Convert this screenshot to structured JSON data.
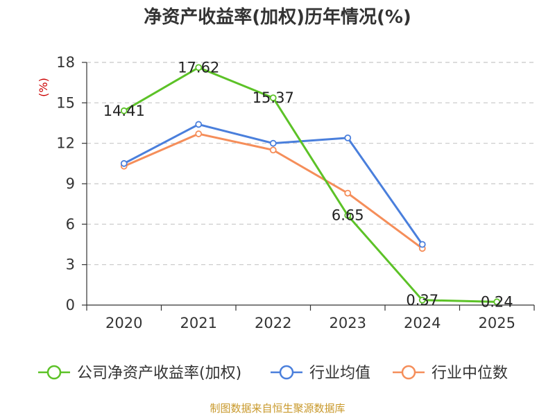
{
  "chart_data": {
    "type": "line",
    "title": "净资产收益率(加权)历年情况(%)",
    "ylabel": "(%)",
    "xlabel": "",
    "categories": [
      "2020",
      "2021",
      "2022",
      "2023",
      "2024",
      "2025"
    ],
    "ylim": [
      0,
      18
    ],
    "yticks": [
      0,
      3,
      6,
      9,
      12,
      15,
      18
    ],
    "grid": true,
    "legend_position": "bottom",
    "series": [
      {
        "name": "公司净资产收益率(加权)",
        "color": "#5cc227",
        "values": [
          14.41,
          17.62,
          15.37,
          6.65,
          0.37,
          0.24
        ],
        "labels": [
          "14.41",
          "17.62",
          "15.37",
          "6.65",
          "0.37",
          "0.24"
        ]
      },
      {
        "name": "行业均值",
        "color": "#4a7fdc",
        "values": [
          10.5,
          13.4,
          12.0,
          12.4,
          4.5,
          null
        ]
      },
      {
        "name": "行业中位数",
        "color": "#f58e5a",
        "values": [
          10.3,
          12.7,
          11.5,
          8.3,
          4.2,
          null
        ]
      }
    ]
  },
  "source": "制图数据来自恒生聚源数据库"
}
